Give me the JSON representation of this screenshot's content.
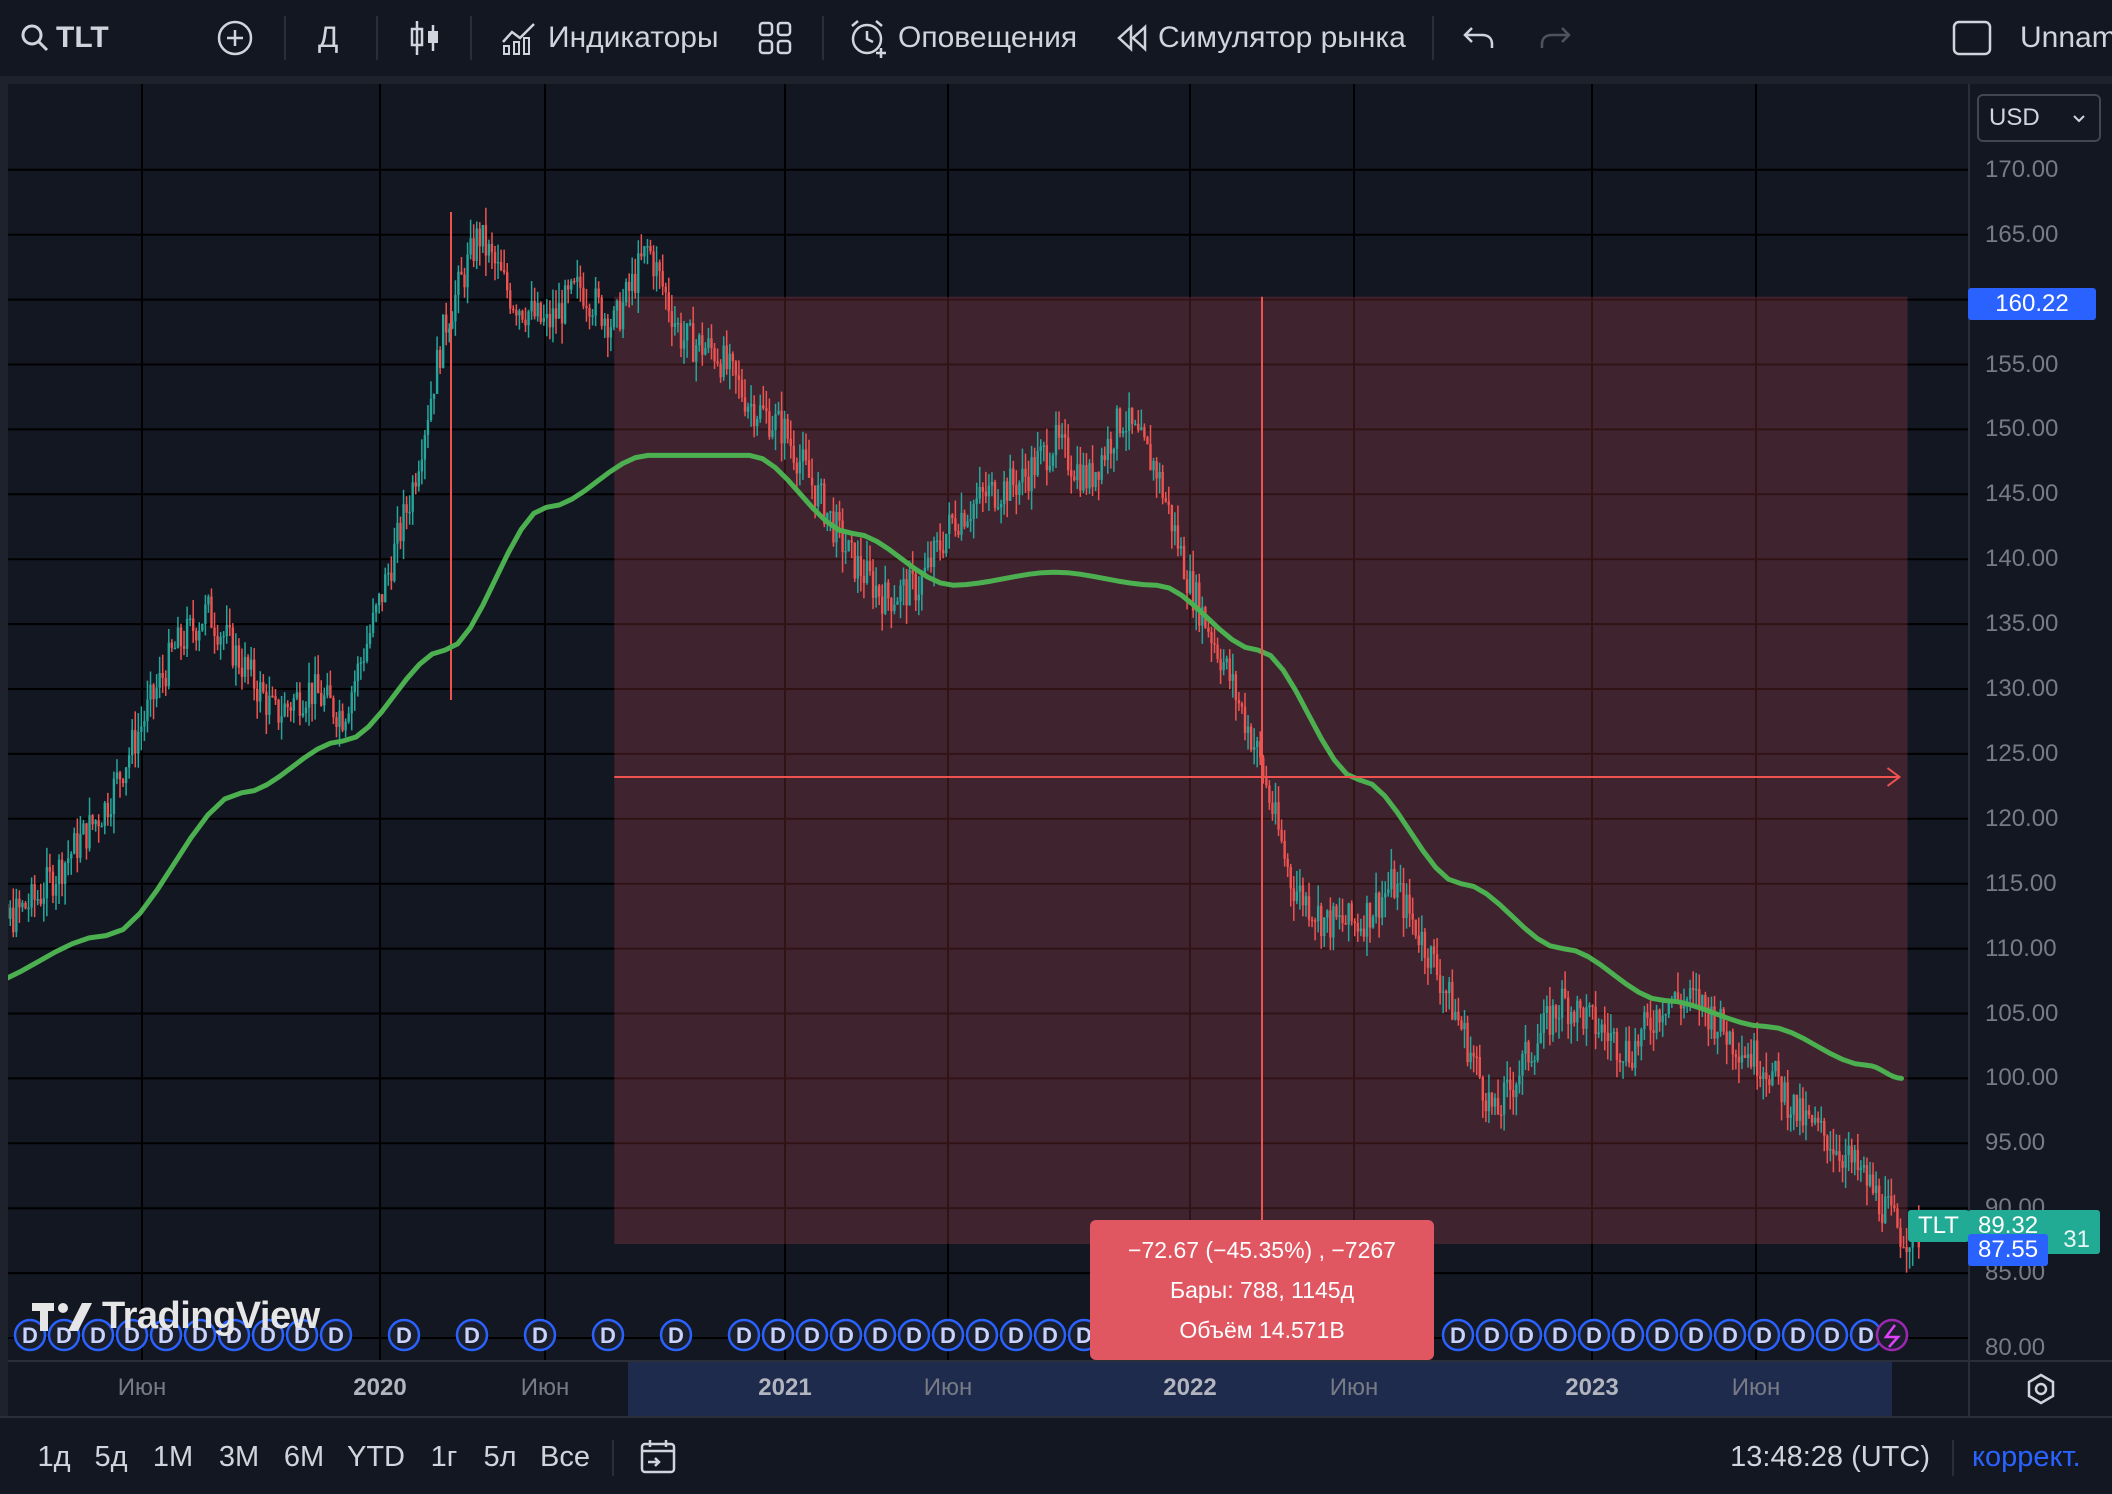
{
  "toolbar": {
    "symbol": "TLT",
    "interval": "Д",
    "indicators_label": "Индикаторы",
    "alerts_label": "Оповещения",
    "replay_label": "Симулятор рынка",
    "layout_name": "Unnamed"
  },
  "price_axis": {
    "currency": "USD",
    "labels": [
      "170.00",
      "165.00",
      "160.00",
      "155.00",
      "150.00",
      "145.00",
      "140.00",
      "135.00",
      "130.00",
      "125.00",
      "120.00",
      "115.00",
      "110.00",
      "105.00",
      "100.00",
      "95.00",
      "90.00",
      "85.00",
      "80.00"
    ],
    "crosshair_price": "160.22",
    "symbol_tag": "TLT",
    "last_price": "89.32",
    "current_price": "87.55",
    "hidden_suffix": "31"
  },
  "time_axis": {
    "labels": [
      {
        "text": "Июн",
        "year": false
      },
      {
        "text": "2020",
        "year": true
      },
      {
        "text": "Июн",
        "year": false
      },
      {
        "text": "2021",
        "year": true
      },
      {
        "text": "Июн",
        "year": false
      },
      {
        "text": "2022",
        "year": true
      },
      {
        "text": "Июн",
        "year": false
      },
      {
        "text": "2023",
        "year": true
      },
      {
        "text": "Июн",
        "year": false
      }
    ]
  },
  "measure": {
    "line1": "−72.67 (−45.35%) , −7267",
    "line2": "Бары: 788, 1145д",
    "line3": "Объём 14.571B",
    "change": -72.67,
    "change_pct": -45.35,
    "bars": 788,
    "days": 1145,
    "start_price": 160.22,
    "end_price": 87.55
  },
  "watermark": "TradingView",
  "dividend_marker": "D",
  "bottom_bar": {
    "ranges": [
      "1д",
      "5д",
      "1М",
      "3М",
      "6М",
      "YTD",
      "1г",
      "5л",
      "Все"
    ],
    "clock": "13:48:28 (UTC)",
    "adjust_label": "коррект."
  },
  "chart_data": {
    "type": "line",
    "symbol": "TLT",
    "y_range": [
      80,
      171
    ],
    "x_range": [
      "2019-01",
      "2023-10"
    ],
    "grid": true,
    "series": [
      {
        "name": "TLT",
        "style": "candles",
        "x": [
          "2019-01",
          "2019-03",
          "2019-05",
          "2019-07",
          "2019-08",
          "2019-09",
          "2019-10",
          "2019-11",
          "2019-12",
          "2020-01",
          "2020-02",
          "2020-03",
          "2020-04",
          "2020-05",
          "2020-06",
          "2020-07",
          "2020-08",
          "2020-09",
          "2020-10",
          "2020-11",
          "2020-12",
          "2021-01",
          "2021-02",
          "2021-03",
          "2021-04",
          "2021-05",
          "2021-06",
          "2021-07",
          "2021-08",
          "2021-09",
          "2021-10",
          "2021-11",
          "2021-12",
          "2022-01",
          "2022-02",
          "2022-03",
          "2022-04",
          "2022-05",
          "2022-06",
          "2022-07",
          "2022-08",
          "2022-09",
          "2022-10",
          "2022-11",
          "2022-12",
          "2023-01",
          "2023-02",
          "2023-03",
          "2023-04",
          "2023-05",
          "2023-06",
          "2023-07",
          "2023-08",
          "2023-09",
          "2023-10"
        ],
        "values": [
          110,
          114,
          121,
          133,
          136,
          132,
          128,
          130,
          128,
          136,
          145,
          158,
          165,
          160,
          158,
          161,
          158,
          164,
          157,
          156,
          152,
          150,
          145,
          140,
          137,
          138,
          143,
          145,
          146,
          149,
          146,
          151,
          147,
          138,
          132,
          125,
          115,
          112,
          112,
          115,
          110,
          104,
          97,
          102,
          106,
          104,
          102,
          106,
          106,
          103,
          101,
          97,
          95,
          92,
          88
        ]
      },
      {
        "name": "",
        "style": "line",
        "color": "#4caf50",
        "x": [
          "2019-01",
          "2019-05",
          "2019-09",
          "2019-12",
          "2020-03",
          "2020-06",
          "2020-09",
          "2020-12",
          "2021-03",
          "2021-06",
          "2021-09",
          "2021-12",
          "2022-03",
          "2022-06",
          "2022-09",
          "2022-12",
          "2023-03",
          "2023-06",
          "2023-09",
          "2023-10"
        ],
        "values": [
          107,
          111,
          122,
          126,
          133,
          144,
          148,
          148,
          142,
          138,
          139,
          138,
          133,
          123,
          115,
          110,
          106,
          104,
          101,
          100
        ]
      }
    ],
    "measure_range": {
      "from_price": 160.22,
      "to_price": 87.55,
      "from_date": "2020-08",
      "to_date": "2023-10"
    }
  }
}
